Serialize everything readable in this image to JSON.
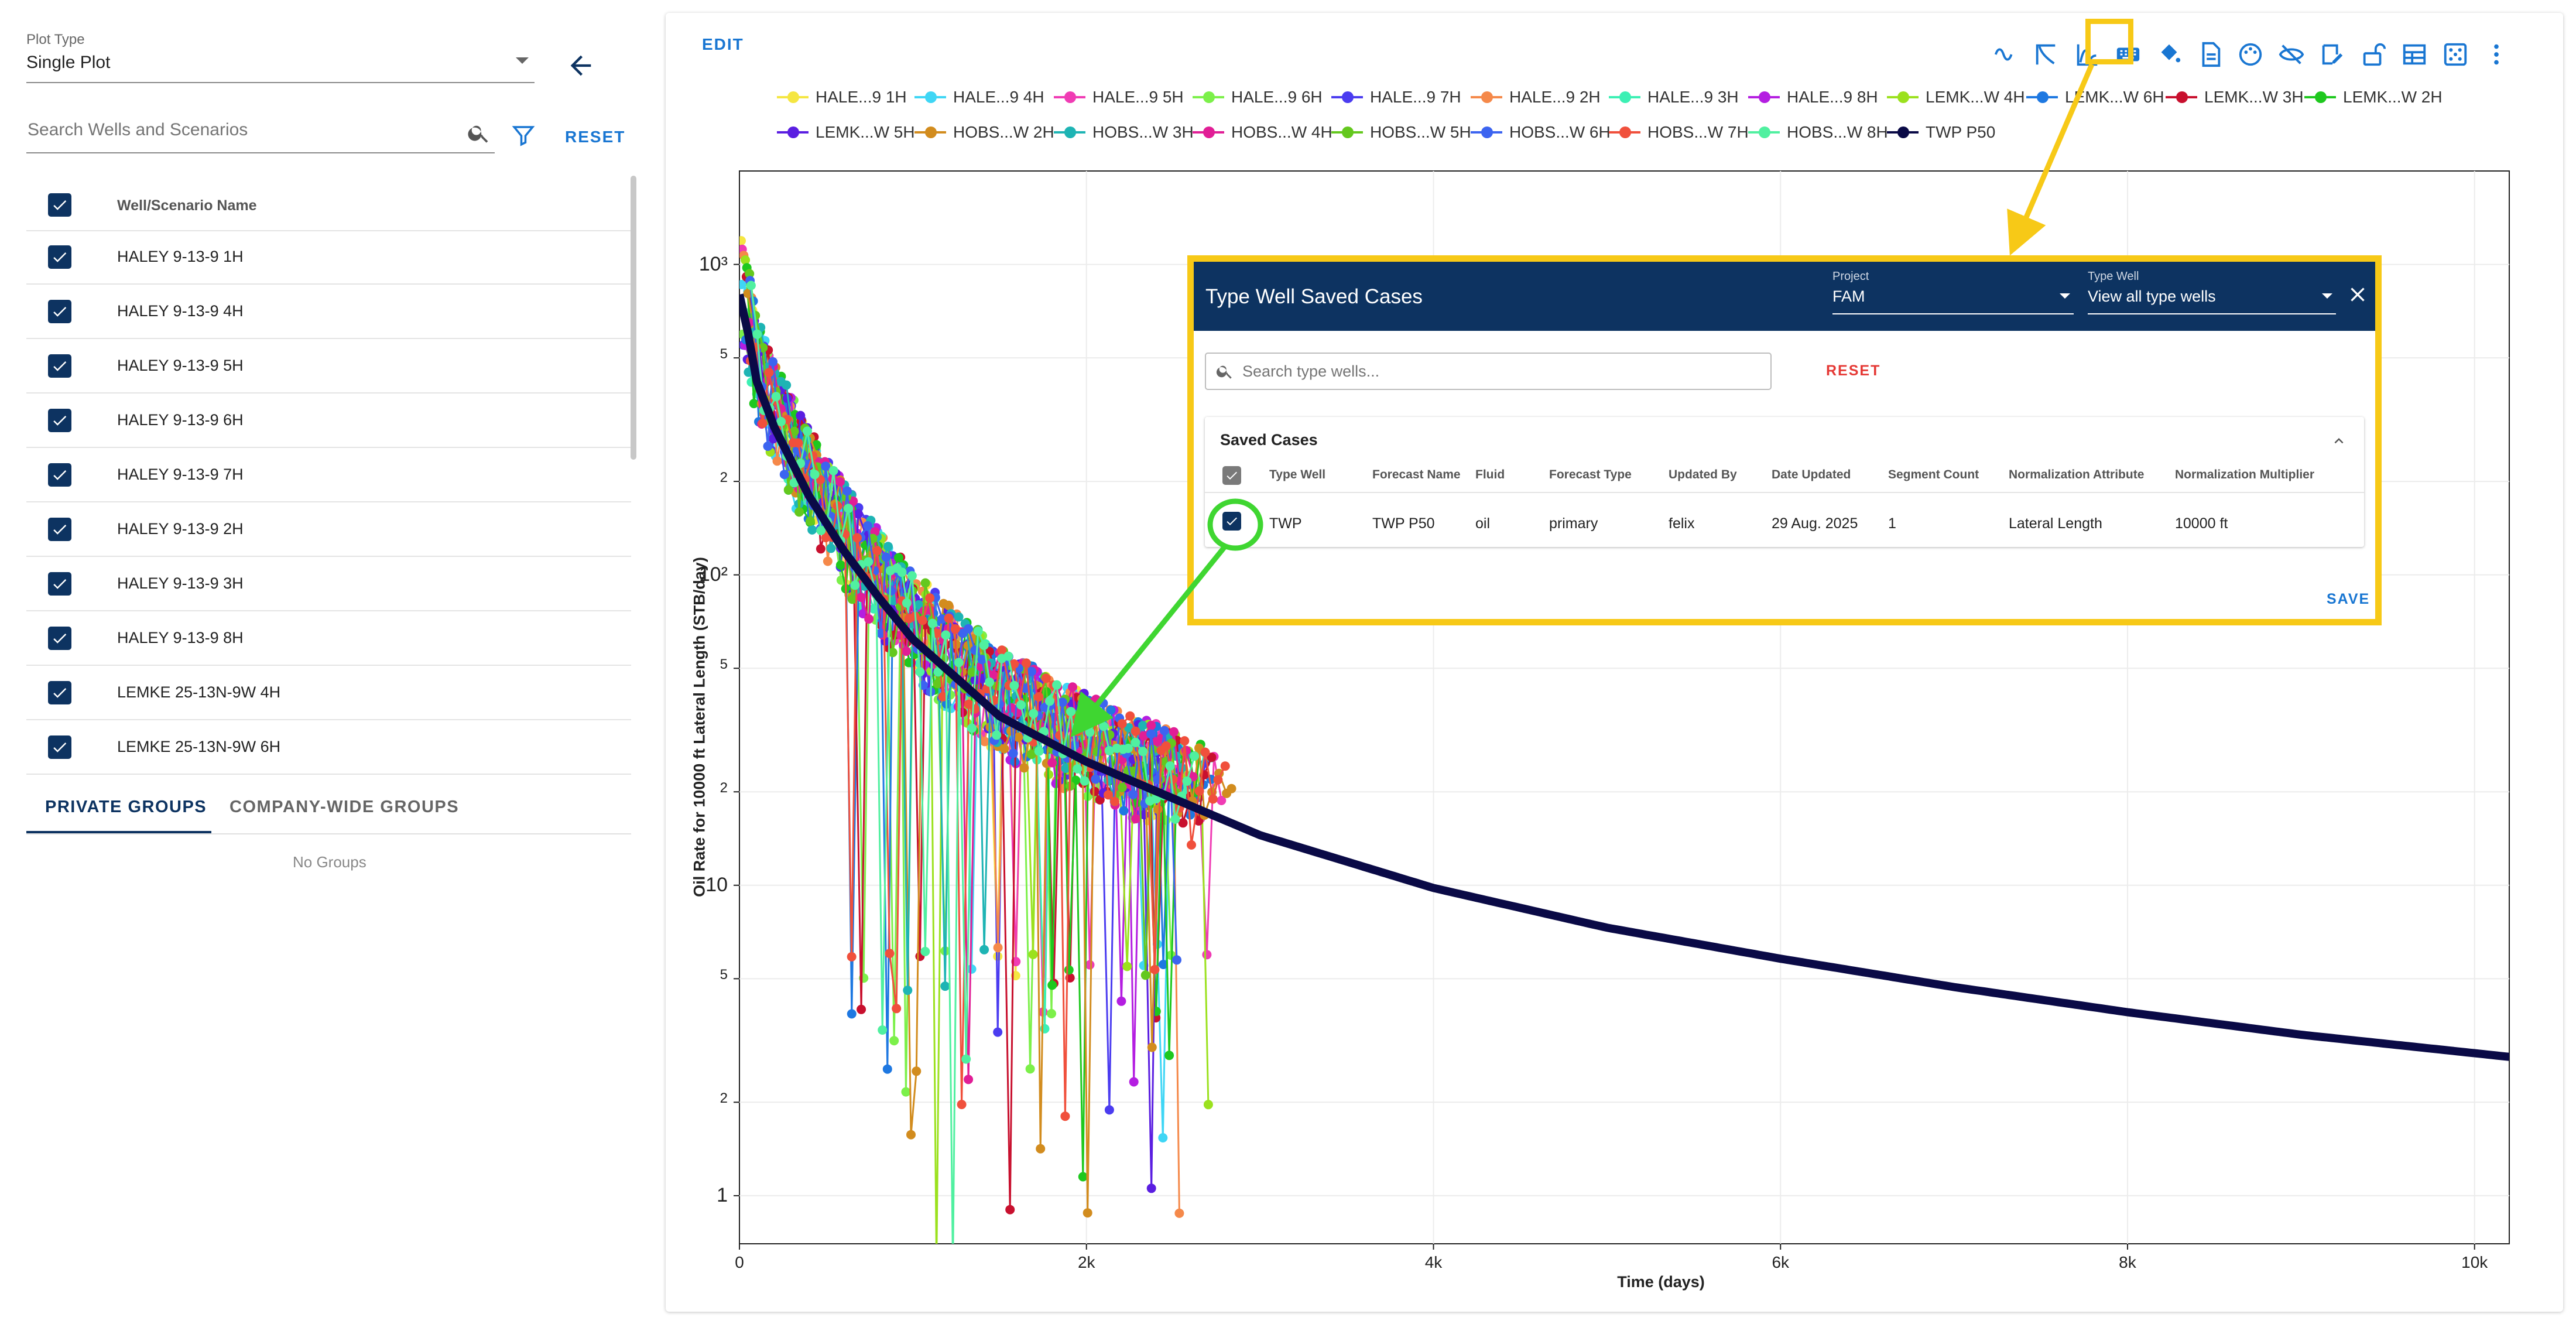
{
  "sidebar": {
    "plot_type_label": "Plot Type",
    "plot_type_value": "Single Plot",
    "search_placeholder": "Search Wells and Scenarios",
    "reset_label": "RESET",
    "table_header": "Well/Scenario Name",
    "wells": [
      "HALEY 9-13-9 1H",
      "HALEY 9-13-9 4H",
      "HALEY 9-13-9 5H",
      "HALEY 9-13-9 6H",
      "HALEY 9-13-9 7H",
      "HALEY 9-13-9 2H",
      "HALEY 9-13-9 3H",
      "HALEY 9-13-9 8H",
      "LEMKE 25-13N-9W 4H",
      "LEMKE 25-13N-9W 6H"
    ],
    "tabs": [
      "PRIVATE GROUPS",
      "COMPANY-WIDE GROUPS"
    ],
    "no_groups": "No Groups"
  },
  "toolbar": {
    "edit_label": "EDIT",
    "icons": [
      "wave-icon",
      "decline-curve-icon",
      "type-curve-icon",
      "keyboard-icon",
      "paint-bucket-icon",
      "document-icon",
      "palette-icon",
      "eye-off-icon",
      "note-edit-icon",
      "unlock-icon",
      "table-icon",
      "scatter-icon",
      "more-vert-icon"
    ]
  },
  "legend": [
    {
      "name": "HALE...9 1H",
      "color": "#f5e642"
    },
    {
      "name": "HALE...9 4H",
      "color": "#3fd6f5"
    },
    {
      "name": "HALE...9 5H",
      "color": "#f03cb4"
    },
    {
      "name": "HALE...9 6H",
      "color": "#7cf04a"
    },
    {
      "name": "HALE...9 7H",
      "color": "#4b3cf0"
    },
    {
      "name": "HALE...9 2H",
      "color": "#f5894a"
    },
    {
      "name": "HALE...9 3H",
      "color": "#3cf0b4"
    },
    {
      "name": "HALE...9 8H",
      "color": "#b41ee1"
    },
    {
      "name": "LEMK...W 4H",
      "color": "#9be11e"
    },
    {
      "name": "LEMK...W 6H",
      "color": "#1e78e1"
    },
    {
      "name": "LEMK...W 3H",
      "color": "#c8102e"
    },
    {
      "name": "LEMK...W 2H",
      "color": "#1ec81e"
    },
    {
      "name": "LEMK...W 5H",
      "color": "#5a1ee1"
    },
    {
      "name": "HOBS...W 2H",
      "color": "#d28c1e"
    },
    {
      "name": "HOBS...W 3H",
      "color": "#1eb4b4"
    },
    {
      "name": "HOBS...W 4H",
      "color": "#e11e96"
    },
    {
      "name": "HOBS...W 5H",
      "color": "#64c81e"
    },
    {
      "name": "HOBS...W 6H",
      "color": "#3c64f0"
    },
    {
      "name": "HOBS...W 7H",
      "color": "#f0503c"
    },
    {
      "name": "HOBS...W 8H",
      "color": "#50f0a0"
    },
    {
      "name": "TWP P50",
      "color": "#0a0a46"
    }
  ],
  "chart_data": {
    "type": "line",
    "y_scale": "log",
    "ylabel": "Oil Rate for 10000 ft Lateral Length (STB/day)",
    "xlabel": "Time (days)",
    "xlim": [
      0,
      10200
    ],
    "ylim": [
      0.7,
      2000
    ],
    "x_ticks": [
      "0",
      "2k",
      "4k",
      "6k",
      "8k",
      "10k"
    ],
    "y_ticks": [
      "10³",
      "5",
      "2",
      "10²",
      "5",
      "2",
      "10",
      "5",
      "2",
      "1"
    ],
    "type_curve": {
      "name": "TWP P50",
      "x": [
        0,
        50,
        100,
        200,
        400,
        600,
        800,
        1000,
        1500,
        2000,
        3000,
        4000,
        5000,
        6000,
        7000,
        8000,
        9000,
        10200
      ],
      "y": [
        800,
        600,
        420,
        300,
        180,
        120,
        85,
        62,
        35,
        25,
        14.5,
        9.8,
        7.3,
        5.8,
        4.7,
        3.9,
        3.3,
        2.8
      ]
    }
  },
  "dialog": {
    "title": "Type Well Saved Cases",
    "project_label": "Project",
    "project_value": "FAM",
    "typewell_label": "Type Well",
    "typewell_value": "View all type wells",
    "search_placeholder": "Search type wells...",
    "reset_label": "RESET",
    "section_title": "Saved Cases",
    "columns": [
      "Type Well",
      "Forecast Name",
      "Fluid",
      "Forecast Type",
      "Updated By",
      "Date Updated",
      "Segment Count",
      "Normalization Attribute",
      "Normalization Multiplier"
    ],
    "row": [
      "TWP",
      "TWP P50",
      "oil",
      "primary",
      "felix",
      "29 Aug. 2025",
      "1",
      "Lateral Length",
      "10000 ft"
    ],
    "save_label": "SAVE"
  },
  "colors": {
    "navy": "#0d3361",
    "highlight": "#f7c917",
    "annotation_green": "#3fd631",
    "accent_blue": "#1976d2"
  }
}
